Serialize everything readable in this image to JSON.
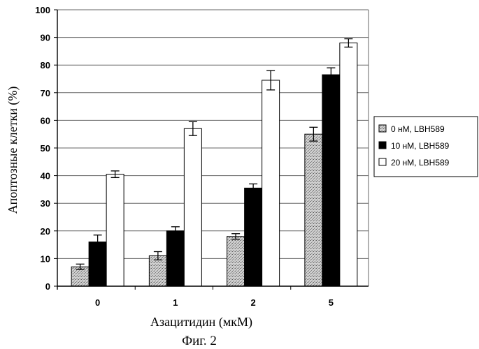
{
  "chart_data": {
    "type": "bar",
    "title": "",
    "xlabel": "Азацитидин (мкМ)",
    "ylabel": "Апоптозные клетки (%)",
    "categories": [
      "0",
      "1",
      "2",
      "5"
    ],
    "ylim": [
      0,
      100
    ],
    "yticks": [
      0,
      10,
      20,
      30,
      40,
      50,
      60,
      70,
      80,
      90,
      100
    ],
    "grid": true,
    "legend_position": "right",
    "series": [
      {
        "name": "0 нМ, LBH589",
        "values": [
          7,
          11,
          18,
          55
        ],
        "errors": [
          1,
          1.5,
          1,
          2.5
        ],
        "color": "#bdbdbd",
        "pattern": "dotted"
      },
      {
        "name": "10 нМ, LBH589",
        "values": [
          16,
          20,
          35.5,
          76.5
        ],
        "errors": [
          2.5,
          1.5,
          1.5,
          2.5
        ],
        "color": "#000000",
        "pattern": "solid"
      },
      {
        "name": "20 нМ, LBH589",
        "values": [
          40.5,
          57,
          74.5,
          88
        ],
        "errors": [
          1.2,
          2.5,
          3.5,
          1.5
        ],
        "color": "#ffffff",
        "pattern": "white"
      }
    ]
  },
  "caption": "Фиг. 2"
}
